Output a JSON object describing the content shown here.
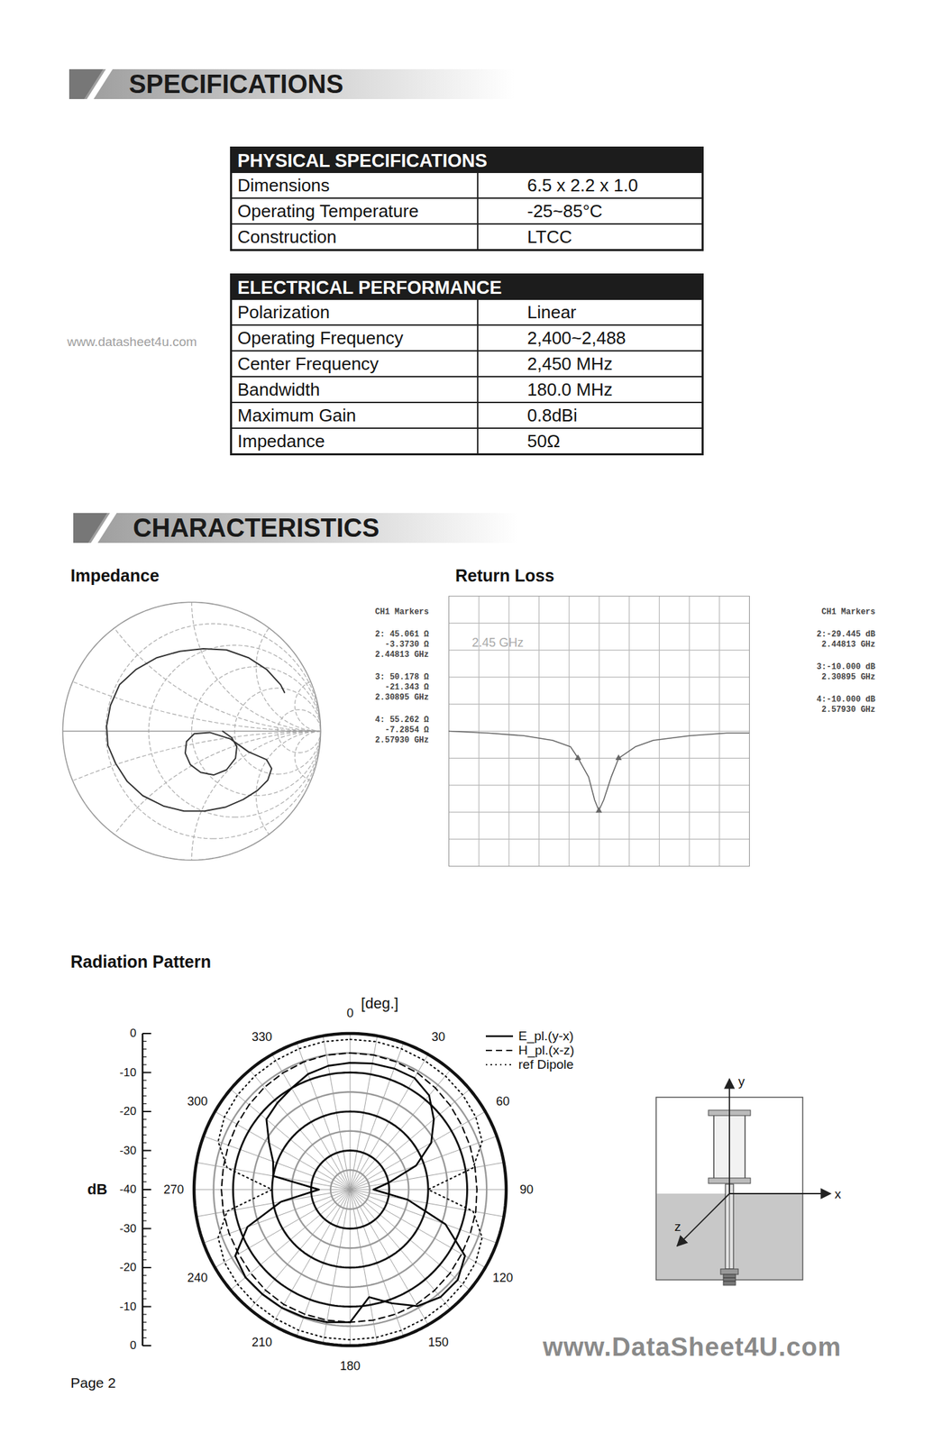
{
  "watermark": "www.datasheet4u.com",
  "sections": [
    "SPECIFICATIONS",
    "CHARACTERISTICS"
  ],
  "tables": [
    {
      "title": "PHYSICAL SPECIFICATIONS",
      "rows": [
        [
          "Dimensions",
          "6.5 x 2.2 x 1.0"
        ],
        [
          "Operating Temperature",
          "-25~85°C"
        ],
        [
          "Construction",
          "LTCC"
        ]
      ]
    },
    {
      "title": "ELECTRICAL PERFORMANCE",
      "rows": [
        [
          "Polarization",
          "Linear"
        ],
        [
          "Operating Frequency",
          "2,400~2,488"
        ],
        [
          "Center Frequency",
          "2,450 MHz"
        ],
        [
          "Bandwidth",
          "180.0 MHz"
        ],
        [
          "Maximum Gain",
          "0.8dBi"
        ],
        [
          "Impedance",
          "50Ω"
        ]
      ]
    }
  ],
  "chart_data": [
    {
      "type": "smith",
      "title": "Impedance",
      "color": "#333333",
      "trace": [
        [
          0.72,
          0.3
        ],
        [
          0.69,
          0.36
        ],
        [
          0.58,
          0.48
        ],
        [
          0.44,
          0.57
        ],
        [
          0.27,
          0.63
        ],
        [
          0.09,
          0.64
        ],
        [
          -0.09,
          0.62
        ],
        [
          -0.27,
          0.57
        ],
        [
          -0.43,
          0.48
        ],
        [
          -0.56,
          0.36
        ],
        [
          -0.63,
          0.2
        ],
        [
          -0.66,
          0.04
        ],
        [
          -0.65,
          -0.11
        ],
        [
          -0.59,
          -0.25
        ],
        [
          -0.5,
          -0.39
        ],
        [
          -0.38,
          -0.5
        ],
        [
          -0.22,
          -0.58
        ],
        [
          -0.06,
          -0.62
        ],
        [
          0.1,
          -0.62
        ],
        [
          0.26,
          -0.59
        ],
        [
          0.4,
          -0.53
        ],
        [
          0.51,
          -0.46
        ],
        [
          0.59,
          -0.38
        ],
        [
          0.62,
          -0.29
        ],
        [
          0.58,
          -0.22
        ],
        [
          0.44,
          -0.16
        ],
        [
          0.3,
          -0.06
        ],
        [
          0.14,
          -0.01
        ],
        [
          0.02,
          -0.02
        ],
        [
          -0.04,
          -0.08
        ],
        [
          -0.05,
          -0.17
        ],
        [
          -0.01,
          -0.26
        ],
        [
          0.07,
          -0.32
        ],
        [
          0.17,
          -0.34
        ],
        [
          0.27,
          -0.3
        ],
        [
          0.34,
          -0.21
        ],
        [
          0.35,
          -0.12
        ],
        [
          0.31,
          -0.05
        ],
        [
          0.24,
          0.0
        ]
      ],
      "markers_title": "CH1 Markers",
      "markers": [
        {
          "lines": [
            "2: 45.061 Ω",
            "-3.3730 Ω",
            "2.44813 GHz"
          ]
        },
        {
          "lines": [
            "3: 50.178 Ω",
            "-21.343 Ω",
            "2.30895 GHz"
          ]
        },
        {
          "lines": [
            "4: 55.262 Ω",
            "-7.2854 Ω",
            "2.57930 GHz"
          ]
        }
      ]
    },
    {
      "type": "line",
      "title": "Return Loss",
      "annotation": "2.45 GHz",
      "color": "#666666",
      "x": [
        1.45,
        1.71,
        1.95,
        2.14,
        2.26,
        2.31,
        2.38,
        2.42,
        2.448,
        2.48,
        2.53,
        2.58,
        2.69,
        2.81,
        3.05,
        3.3,
        3.45
      ],
      "values": [
        0,
        -0.7,
        -1.7,
        -3.4,
        -5.8,
        -10,
        -17,
        -25.5,
        -29.4,
        -25.5,
        -17,
        -10,
        -5.8,
        -3.4,
        -1.7,
        -0.7,
        -0.7
      ],
      "xlim": [
        1.45,
        3.45
      ],
      "xticks": [
        1.45,
        1.65,
        1.85,
        2.05,
        2.25,
        2.45,
        2.65,
        2.85,
        3.05,
        3.25,
        3.45
      ],
      "ylim": [
        -50,
        50
      ],
      "yticks": [
        -50,
        -40,
        -30,
        -20,
        -10,
        0,
        10,
        20,
        30,
        40,
        50
      ],
      "grid": true,
      "tick_labels": false,
      "markers_title": "CH1 Markers",
      "markers": [
        {
          "x": 2.44813,
          "y": -29.445,
          "lines": [
            "2:-29.445 dB",
            "2.44813 GHz"
          ]
        },
        {
          "x": 2.30895,
          "y": -10,
          "lines": [
            "3:-10.000 dB",
            "2.30895 GHz"
          ]
        },
        {
          "x": 2.5793,
          "y": -10,
          "lines": [
            "4:-10.000 dB",
            "2.57930 GHz"
          ]
        }
      ]
    },
    {
      "type": "polar",
      "title": "Radiation Pattern",
      "angle_label": "[deg.]",
      "r_label": "dB",
      "theta": [
        0,
        10,
        20,
        30,
        40,
        50,
        60,
        70,
        80,
        90,
        100,
        110,
        120,
        130,
        140,
        150,
        160,
        170,
        180,
        190,
        200,
        210,
        220,
        230,
        240,
        250,
        260,
        270,
        280,
        290,
        300,
        310,
        320,
        330,
        340,
        350
      ],
      "thetaticks": [
        0,
        30,
        60,
        90,
        120,
        150,
        180,
        210,
        240,
        270,
        300,
        330
      ],
      "rlim": [
        -40,
        0
      ],
      "rticks": [
        0,
        -10,
        -20,
        -30,
        -40
      ],
      "legend": "top-right",
      "series": [
        {
          "name": "E_pl.(y-x)",
          "color": "#000000",
          "line_style": "solid",
          "values": [
            -7.5,
            -7.2,
            -7,
            -7,
            -8.5,
            -12,
            -16,
            -22,
            -30,
            -34,
            -25,
            -14,
            -6,
            -4,
            -4,
            -5.5,
            -9,
            -12,
            -6,
            -5.5,
            -5.2,
            -5,
            -5,
            -5,
            -6,
            -12,
            -22,
            -32,
            -20,
            -19,
            -16,
            -12,
            -11,
            -10,
            -8.5,
            -7.8
          ]
        },
        {
          "name": "H_pl.(x-z)",
          "color": "#000000",
          "line_style": "dashed",
          "values": [
            -5,
            -5,
            -5.2,
            -5.5,
            -6,
            -6.5,
            -7,
            -7.3,
            -7.5,
            -7.5,
            -7.3,
            -7.2,
            -7,
            -6.6,
            -6.3,
            -6,
            -6,
            -6,
            -6,
            -6,
            -6,
            -6,
            -6.3,
            -6.7,
            -7,
            -7,
            -7,
            -7,
            -7,
            -6.8,
            -6.5,
            -6.2,
            -5.8,
            -5.5,
            -5.2,
            -5
          ]
        },
        {
          "name": "ref Dipole",
          "color": "#000000",
          "line_style": "dotted",
          "values": [
            -1.5,
            -1.5,
            -1.6,
            -1.8,
            -2,
            -2.3,
            -2.8,
            -4,
            -8,
            -20,
            -8,
            -4,
            -2.8,
            -2.3,
            -2,
            -1.8,
            -1.6,
            -1.5,
            -1.5,
            -1.5,
            -1.6,
            -1.8,
            -2,
            -2.3,
            -2.8,
            -4,
            -8,
            -20,
            -8,
            -4,
            -2.8,
            -2.3,
            -2,
            -1.8,
            -1.6,
            -1.5
          ]
        }
      ]
    }
  ],
  "diagram": {
    "axes": [
      "y",
      "x",
      "z"
    ]
  },
  "footer": {
    "website": "www.DataSheet4U.com",
    "page": "Page 2"
  }
}
